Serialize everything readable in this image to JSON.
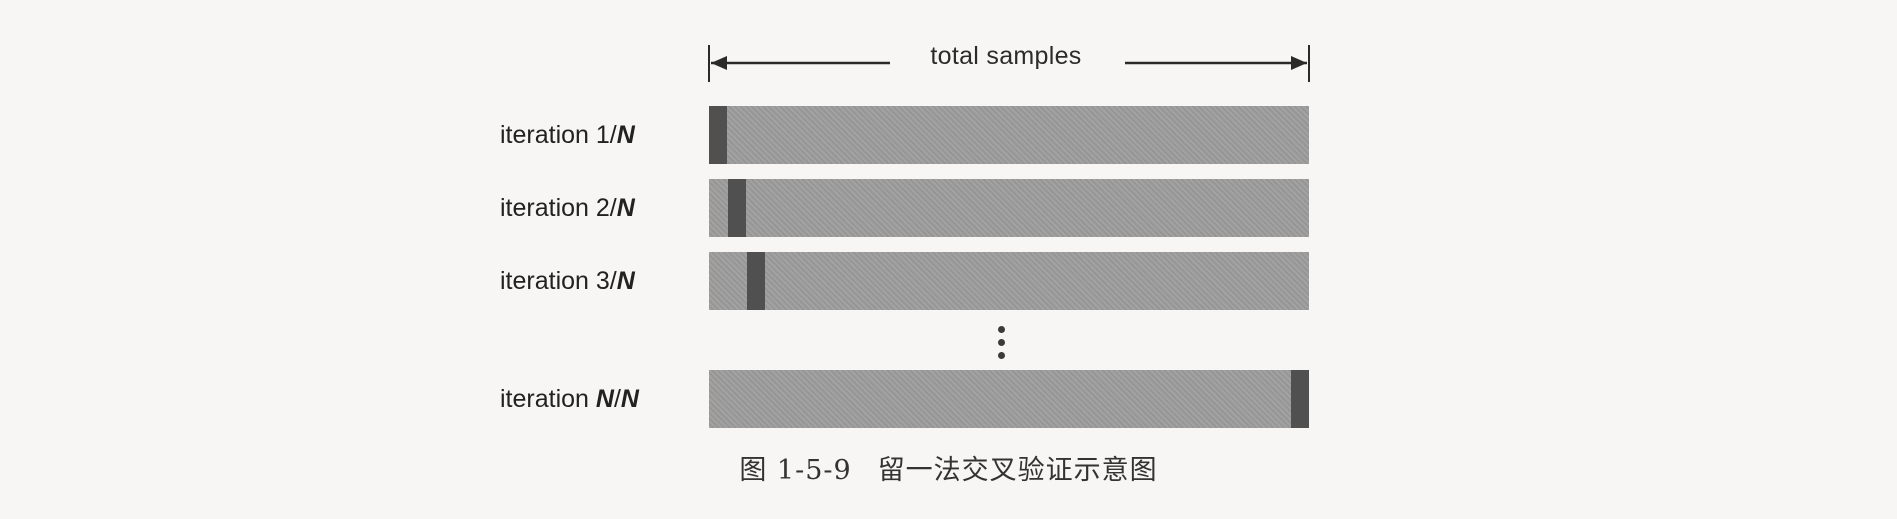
{
  "span": {
    "label": "total samples"
  },
  "rows": [
    {
      "prefix": "iteration ",
      "k": "1",
      "sep": "/",
      "N": "N",
      "k_italic": false,
      "held_out_index": 0
    },
    {
      "prefix": "iteration ",
      "k": "2",
      "sep": "/",
      "N": "N",
      "k_italic": false,
      "held_out_index": 1
    },
    {
      "prefix": "iteration ",
      "k": "3",
      "sep": "/",
      "N": "N",
      "k_italic": false,
      "held_out_index": 2
    },
    {
      "prefix": "iteration ",
      "k": "N",
      "sep": "/",
      "N": "N",
      "k_italic": true,
      "held_out_index": "last"
    }
  ],
  "ellipsis": "vertical-dots",
  "caption": {
    "number": "图 1-5-9",
    "text": "留一法交叉验证示意图"
  },
  "colors": {
    "bar": "#9c9c9c",
    "held_out": "#505050",
    "background": "#f7f6f4"
  }
}
